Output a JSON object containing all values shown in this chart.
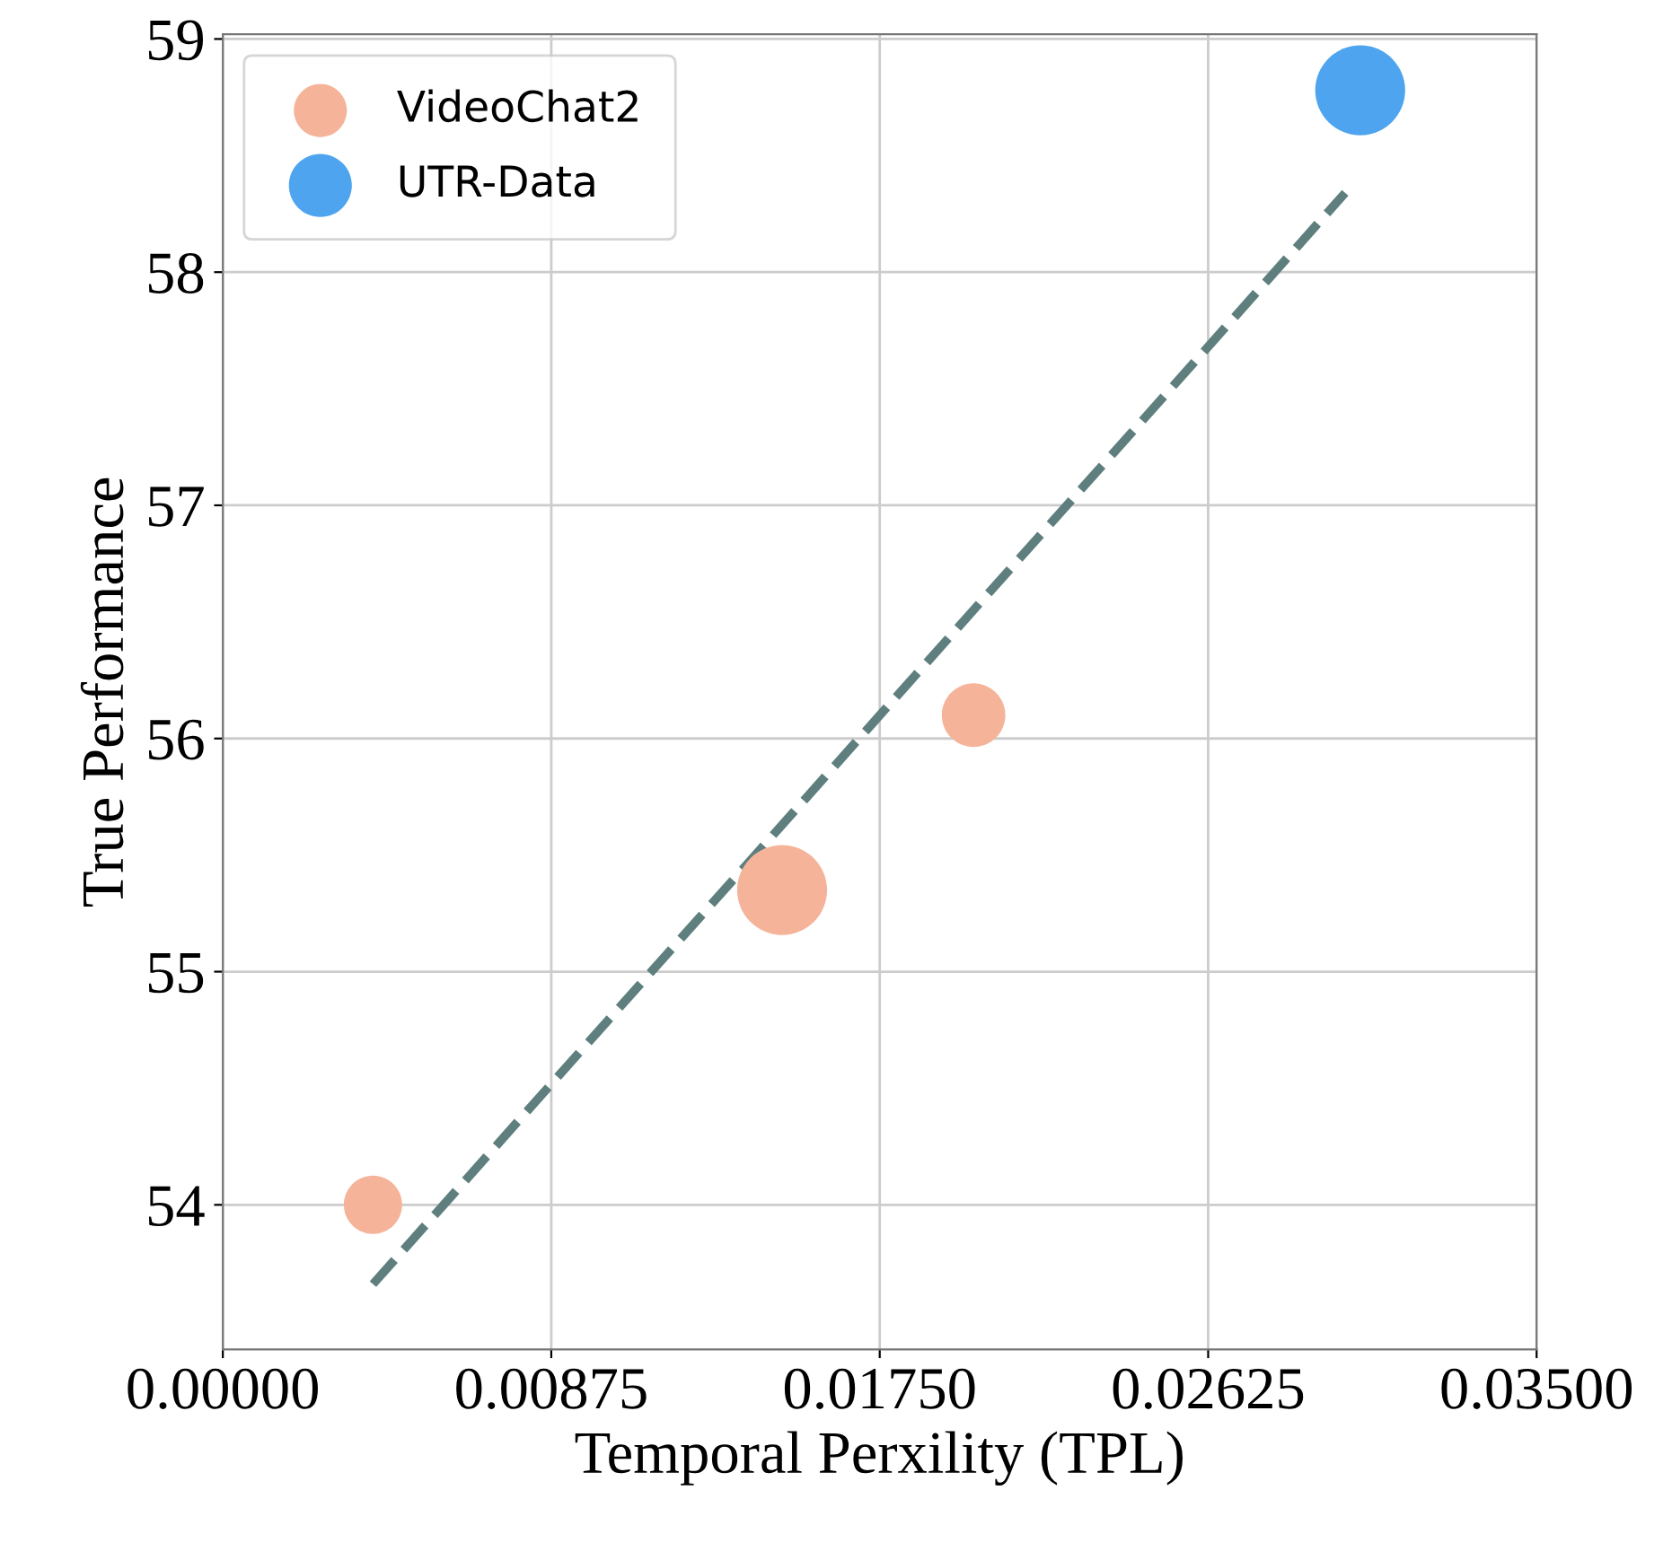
{
  "chart_data": {
    "type": "bubble",
    "xlabel": "Temporal Perxility (TPL)",
    "ylabel": "True Performance",
    "xlim": [
      0,
      0.035
    ],
    "ylim": [
      53.38,
      59.02
    ],
    "xticks": [
      {
        "value": 0,
        "label": "0.00000"
      },
      {
        "value": 0.00875,
        "label": "0.00875"
      },
      {
        "value": 0.0175,
        "label": "0.01750"
      },
      {
        "value": 0.02625,
        "label": "0.02625"
      },
      {
        "value": 0.035,
        "label": "0.03500"
      }
    ],
    "yticks": [
      54,
      55,
      56,
      57,
      58,
      59
    ],
    "grid": true,
    "legend": "top left",
    "series": [
      {
        "name": "VideoChat2",
        "color": "#f5b49a",
        "x": [
          0.004,
          0.0149,
          0.02
        ],
        "values": [
          54.0,
          55.35,
          56.1
        ],
        "sizes": [
          0.42,
          1,
          0.5
        ]
      },
      {
        "name": "UTR-Data",
        "color": "#4ea4ee",
        "x": [
          0.0303
        ],
        "values": [
          58.78
        ],
        "sizes": [
          1
        ]
      },
      {
        "type": "line",
        "color": "#5f7f7f",
        "line_style": "dashed",
        "x": [
          0.004,
          0.0299
        ],
        "values": [
          53.66,
          58.34
        ]
      }
    ]
  }
}
